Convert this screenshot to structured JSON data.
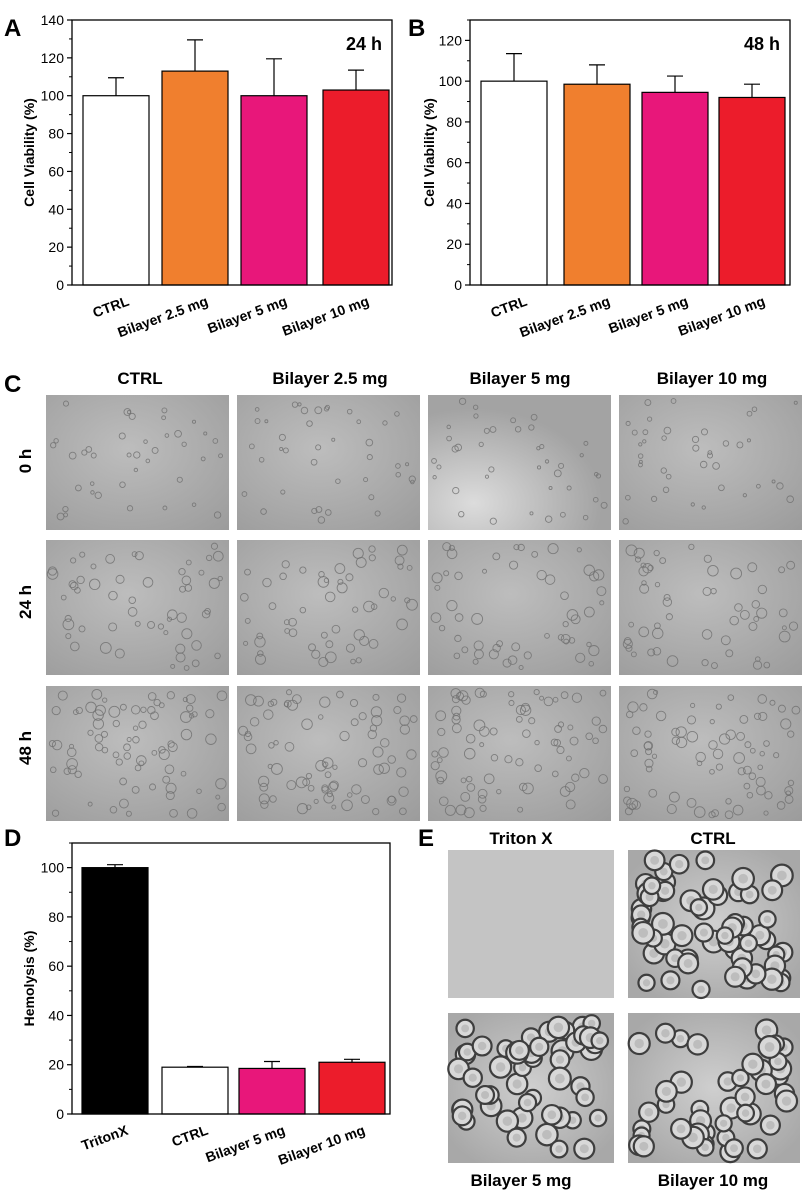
{
  "panel_letters": {
    "a": "A",
    "b": "B",
    "c": "C",
    "d": "D",
    "e": "E"
  },
  "colors": {
    "ctrl": "#ffffff",
    "bilayer_2_5": "#f07f2e",
    "bilayer_5": "#e8177a",
    "bilayer_10": "#ec1c2b",
    "tritonx": "#000000",
    "axis": "#000000"
  },
  "chart_data": [
    {
      "id": "A",
      "type": "bar",
      "title": "24 h",
      "xlabel": "",
      "ylabel": "Cell Viability (%)",
      "ylim": [
        0,
        140
      ],
      "yticks": [
        0,
        20,
        40,
        60,
        80,
        100,
        120,
        140
      ],
      "grid": false,
      "categories": [
        "CTRL",
        "Bilayer 2.5 mg",
        "Bilayer 5 mg",
        "Bilayer 10 mg"
      ],
      "values": [
        100,
        113,
        100,
        103
      ],
      "errors": [
        9.5,
        16.5,
        19.5,
        10.5
      ],
      "bar_colors": [
        "#ffffff",
        "#f07f2e",
        "#e8177a",
        "#ec1c2b"
      ]
    },
    {
      "id": "B",
      "type": "bar",
      "title": "48 h",
      "xlabel": "",
      "ylabel": "Cell Viability (%)",
      "ylim": [
        0,
        130
      ],
      "yticks": [
        0,
        20,
        40,
        60,
        80,
        100,
        120
      ],
      "grid": false,
      "categories": [
        "CTRL",
        "Bilayer 2.5 mg",
        "Bilayer 5 mg",
        "Bilayer 10 mg"
      ],
      "values": [
        100,
        98.5,
        94.5,
        92
      ],
      "errors": [
        13.5,
        9.5,
        8,
        6.5
      ],
      "bar_colors": [
        "#ffffff",
        "#f07f2e",
        "#e8177a",
        "#ec1c2b"
      ]
    },
    {
      "id": "D",
      "type": "bar",
      "title": "",
      "xlabel": "",
      "ylabel": "Hemolysis (%)",
      "ylim": [
        0,
        110
      ],
      "yticks": [
        0,
        20,
        40,
        60,
        80,
        100
      ],
      "grid": false,
      "categories": [
        "TritonX",
        "CTRL",
        "Bilayer 5 mg",
        "Bilayer 10 mg"
      ],
      "values": [
        100,
        19,
        18.5,
        21
      ],
      "errors": [
        1.2,
        0.3,
        2.8,
        1.2
      ],
      "bar_colors": [
        "#000000",
        "#ffffff",
        "#e8177a",
        "#ec1c2b"
      ]
    }
  ],
  "panel_c": {
    "column_headers": [
      "CTRL",
      "Bilayer 2.5 mg",
      "Bilayer 5 mg",
      "Bilayer 10 mg"
    ],
    "row_labels": [
      "0 h",
      "24 h",
      "48 h"
    ]
  },
  "panel_e": {
    "top_labels": [
      "Triton X",
      "CTRL"
    ],
    "bottom_labels": [
      "Bilayer 5 mg",
      "Bilayer 10 mg"
    ]
  }
}
